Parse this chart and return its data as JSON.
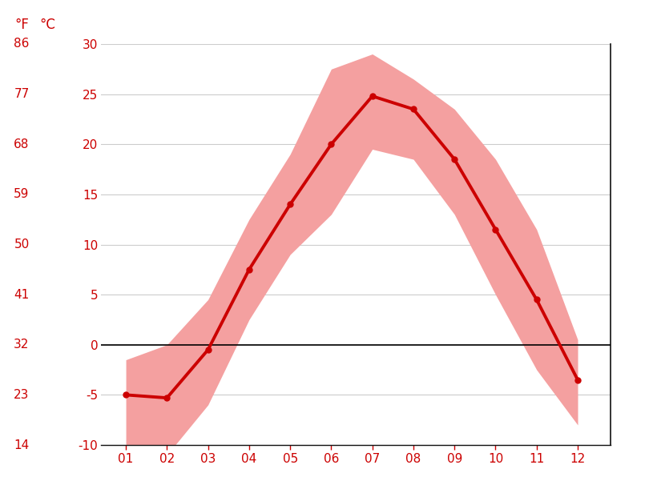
{
  "months": [
    1,
    2,
    3,
    4,
    5,
    6,
    7,
    8,
    9,
    10,
    11,
    12
  ],
  "month_labels": [
    "01",
    "02",
    "03",
    "04",
    "05",
    "06",
    "07",
    "08",
    "09",
    "10",
    "11",
    "12"
  ],
  "mean_temp_c": [
    -5.0,
    -5.3,
    -0.5,
    7.5,
    14.0,
    20.0,
    24.8,
    23.5,
    18.5,
    11.5,
    4.5,
    -3.5
  ],
  "max_temp_c": [
    -1.5,
    0.0,
    4.5,
    12.5,
    19.0,
    27.5,
    29.0,
    26.5,
    23.5,
    18.5,
    11.5,
    0.5
  ],
  "min_temp_c": [
    -10.5,
    -11.0,
    -6.0,
    2.5,
    9.0,
    13.0,
    19.5,
    18.5,
    13.0,
    5.0,
    -2.5,
    -8.0
  ],
  "line_color": "#cc0000",
  "band_color": "#f4a0a0",
  "zero_line_color": "#000000",
  "grid_color": "#cccccc",
  "text_color": "#cc0000",
  "background_color": "#ffffff",
  "ylim_c": [
    -10,
    30
  ],
  "yticks_c": [
    -10,
    -5,
    0,
    5,
    10,
    15,
    20,
    25,
    30
  ],
  "yticks_f": [
    14,
    23,
    32,
    41,
    50,
    59,
    68,
    77,
    86
  ],
  "ylabel_left_f": "°F",
  "ylabel_left_c": "°C"
}
